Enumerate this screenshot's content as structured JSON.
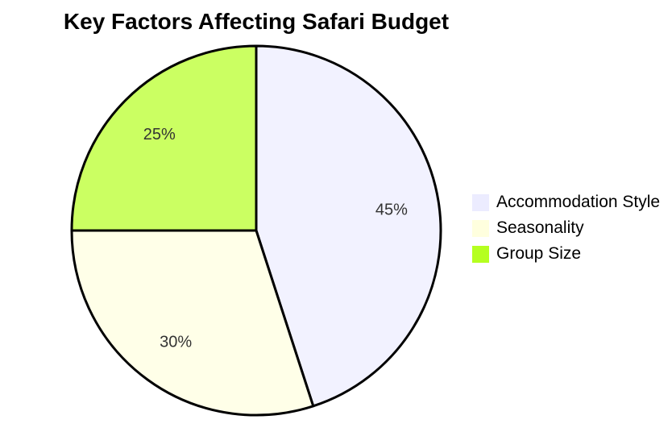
{
  "page": {
    "background": "#FFFFFF"
  },
  "chart_data": {
    "type": "pie",
    "title": "Key Factors Affecting Safari Budget",
    "slices": [
      {
        "label": "Accommodation Style",
        "value": 45,
        "pct_label": "45%",
        "color": "#ECECFF"
      },
      {
        "label": "Seasonality",
        "value": 30,
        "pct_label": "30%",
        "color": "#FFFFDE"
      },
      {
        "label": "Group Size",
        "value": 25,
        "pct_label": "25%",
        "color": "#B5FF20"
      }
    ],
    "total": 100,
    "start_angle_deg": 0,
    "direction": "clockwise",
    "slice_fill_opacity": 0.7,
    "stroke_color": "#000000",
    "percent_label_color": "#333333",
    "legend_position": "right",
    "grid": false
  }
}
